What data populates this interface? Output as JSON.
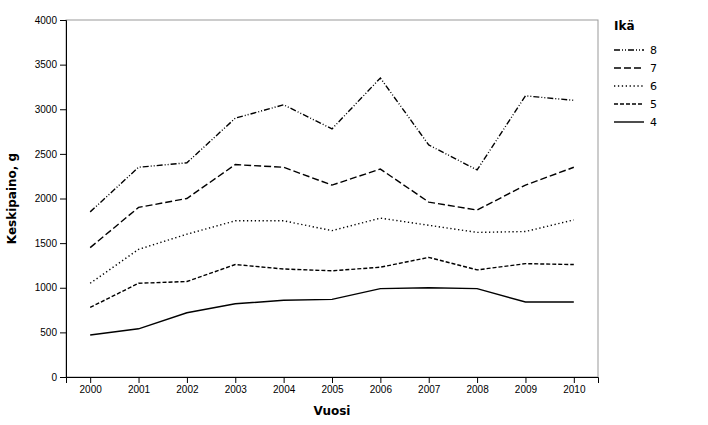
{
  "chart_data": {
    "type": "line",
    "x": [
      2000,
      2001,
      2002,
      2003,
      2004,
      2005,
      2006,
      2007,
      2008,
      2009,
      2010
    ],
    "series": [
      {
        "name": "8",
        "color": "#000000",
        "line_style": "dash-dot-dot",
        "values": [
          1850,
          2350,
          2400,
          2900,
          3050,
          2780,
          3350,
          2600,
          2320,
          3150,
          3100
        ]
      },
      {
        "name": "7",
        "color": "#000000",
        "line_style": "long-dash",
        "values": [
          1450,
          1900,
          2000,
          2380,
          2350,
          2150,
          2330,
          1960,
          1870,
          2150,
          2350
        ]
      },
      {
        "name": "6",
        "color": "#000000",
        "line_style": "dotted",
        "values": [
          1050,
          1430,
          1600,
          1750,
          1750,
          1640,
          1780,
          1700,
          1620,
          1630,
          1760
        ]
      },
      {
        "name": "5",
        "color": "#000000",
        "line_style": "short-dash",
        "values": [
          780,
          1050,
          1070,
          1260,
          1210,
          1190,
          1230,
          1340,
          1200,
          1270,
          1260
        ]
      },
      {
        "name": "4",
        "color": "#000000",
        "line_style": "solid",
        "values": [
          470,
          540,
          720,
          820,
          860,
          870,
          990,
          1000,
          990,
          840,
          840
        ]
      }
    ],
    "x_label": "Vuosi",
    "y_label": "Keskipaino, g",
    "legend_title": "Ikä",
    "legend": "right",
    "grid": false,
    "xlim": [
      1999.5,
      2010.5
    ],
    "xticks": [
      2000,
      2001,
      2002,
      2003,
      2004,
      2005,
      2006,
      2007,
      2008,
      2009,
      2010
    ],
    "ylim": [
      0,
      4000
    ],
    "yticks": [
      0,
      500,
      1000,
      1500,
      2000,
      2500,
      3000,
      3500,
      4000
    ]
  }
}
